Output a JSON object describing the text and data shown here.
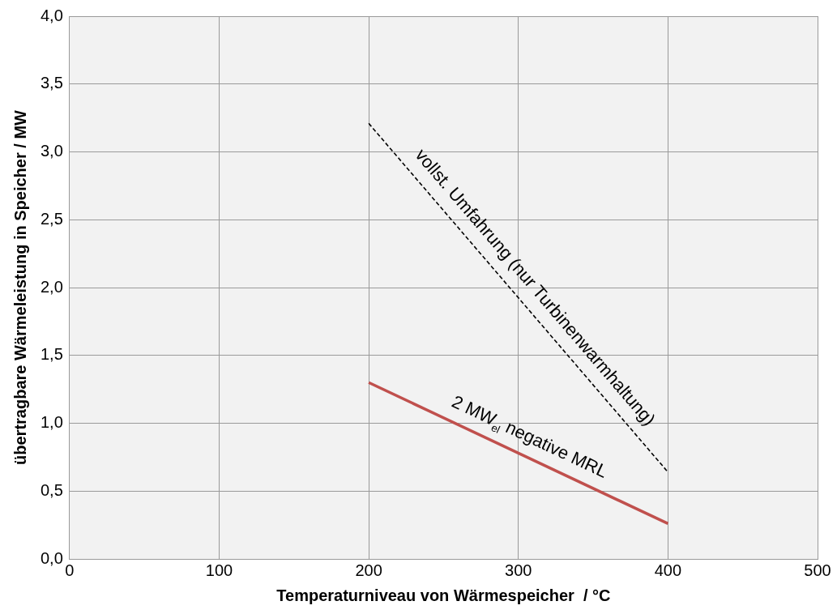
{
  "chart_data": {
    "type": "line",
    "xlabel": "Temperaturniveau von Wärmespeicher  / °C",
    "ylabel": "übertragbare Wärmeleistung in Speicher / MW",
    "xlim": [
      0,
      500
    ],
    "xticks": [
      0,
      100,
      200,
      300,
      400,
      500
    ],
    "ylim": [
      0,
      4
    ],
    "yticks": [
      {
        "value": 0,
        "label": "0,0"
      },
      {
        "value": 0.5,
        "label": "0,5"
      },
      {
        "value": 1,
        "label": "1,0"
      },
      {
        "value": 1.5,
        "label": "1,5"
      },
      {
        "value": 2,
        "label": "2,0"
      },
      {
        "value": 2.5,
        "label": "2,5"
      },
      {
        "value": 3,
        "label": "3,0"
      },
      {
        "value": 3.5,
        "label": "3,5"
      },
      {
        "value": 4,
        "label": "4,0"
      }
    ],
    "grid": true,
    "legend": false,
    "marker": "none",
    "x": [
      200,
      400
    ],
    "series": [
      {
        "name": "vollst. Umfahrung (nur Turbinenwarmhaltung)",
        "color": "#000000",
        "line_style": "dashed",
        "values": [
          3.21,
          0.64
        ]
      },
      {
        "name": "2 MW$_{el}$ negative MRL",
        "color": "#c0504d",
        "line_style": "solid",
        "values": [
          1.3,
          0.26
        ]
      }
    ]
  }
}
